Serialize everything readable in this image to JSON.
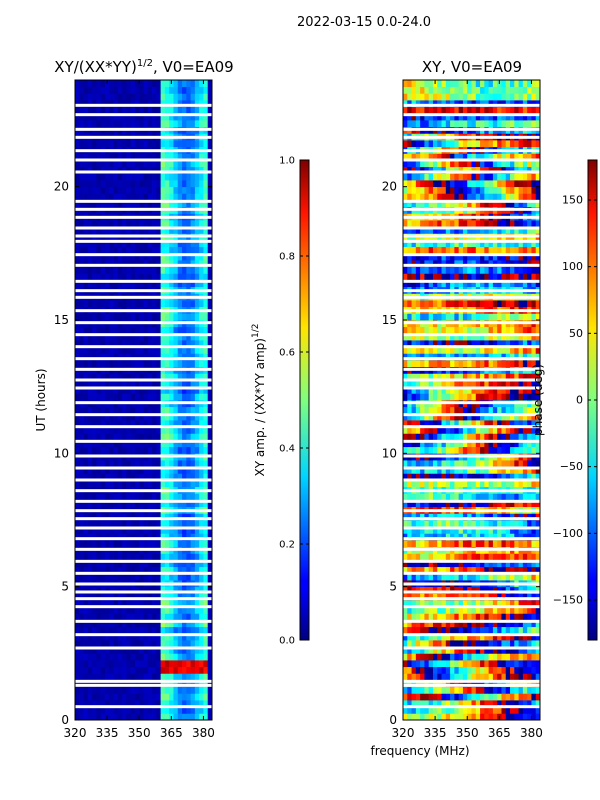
{
  "figure": {
    "suptitle": "2022-03-15 0.0-24.0",
    "shared_xlabel": "frequency (MHz)"
  },
  "chart_data": [
    {
      "type": "heatmap",
      "title_main": "XY/(XX*YY)",
      "title_exp": "1/2",
      "title_tail": ", V0=EA09",
      "xlabel": "",
      "ylabel": "UT (hours)",
      "xlim": [
        320,
        384
      ],
      "ylim": [
        0,
        24
      ],
      "xticks": [
        320,
        335,
        350,
        365,
        380
      ],
      "yticks": [
        0,
        5,
        10,
        15,
        20
      ],
      "colormap": "jet",
      "colorbar": {
        "label_main": "XY amp. / (XX*YY amp)",
        "label_exp": "1/2",
        "range": [
          0.0,
          1.0
        ],
        "ticks": [
          "0.0",
          "0.2",
          "0.4",
          "0.6",
          "0.8",
          "1.0"
        ],
        "tick_values": [
          0.0,
          0.2,
          0.4,
          0.6,
          0.8,
          1.0
        ]
      },
      "description": "Mostly near 0 (dark blue) below ~361 MHz; bright bands 0.3-0.6 between ~361 and ~382 MHz; spikes near 0.9 around UT 2 h."
    },
    {
      "type": "heatmap",
      "title_main": "XY, V0=EA09",
      "xlabel": "frequency (MHz)",
      "ylabel": "",
      "xlim": [
        320,
        384
      ],
      "ylim": [
        0,
        24
      ],
      "xticks": [
        320,
        335,
        350,
        365,
        380
      ],
      "yticks": [
        0,
        5,
        10,
        15,
        20
      ],
      "colormap": "jet",
      "colorbar": {
        "label_main": "phase (deg)",
        "range": [
          -180,
          180
        ],
        "ticks": [
          "−150",
          "−100",
          "−50",
          "0",
          "50",
          "100",
          "150"
        ],
        "tick_values": [
          -150,
          -100,
          -50,
          0,
          50,
          100,
          150
        ]
      },
      "description": "Phase spans full -180 to 180 degree range across all frequencies."
    }
  ],
  "flagged_ut_rows": [
    0.5,
    1.3,
    1.45,
    2.7,
    3.2,
    3.7,
    4.25,
    4.55,
    4.8,
    5.1,
    5.5,
    5.95,
    6.4,
    6.8,
    7.2,
    7.55,
    7.85,
    8.2,
    8.6,
    9.0,
    9.45,
    9.9,
    10.45,
    11.0,
    11.45,
    11.9,
    12.45,
    12.75,
    13.15,
    13.55,
    14.0,
    14.45,
    14.9,
    15.35,
    15.85,
    16.1,
    16.45,
    17.05,
    17.45,
    17.95,
    18.15,
    18.45,
    18.85,
    19.15,
    19.45,
    20.55,
    21.0,
    21.35,
    21.85,
    22.15,
    22.7,
    23.05
  ]
}
